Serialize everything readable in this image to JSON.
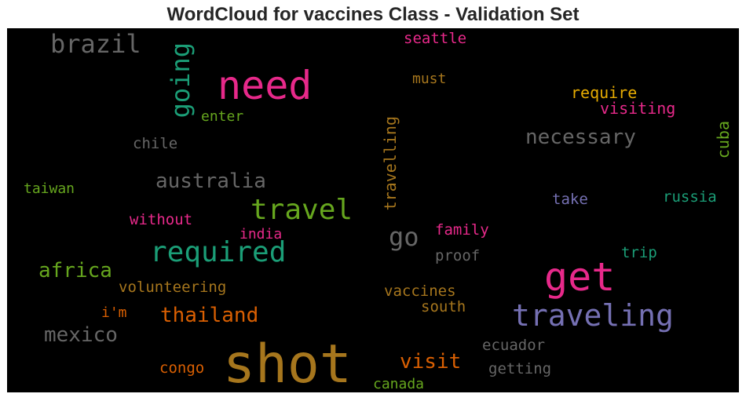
{
  "chart_data": {
    "type": "wordcloud",
    "title": "WordCloud for vaccines Class - Validation Set",
    "background": "#000000",
    "words": [
      {
        "text": "shot",
        "color": "#a6761d",
        "orientation": "horizontal"
      },
      {
        "text": "need",
        "color": "#e7298a",
        "orientation": "horizontal"
      },
      {
        "text": "get",
        "color": "#e7298a",
        "orientation": "horizontal"
      },
      {
        "text": "traveling",
        "color": "#7570b3",
        "orientation": "horizontal"
      },
      {
        "text": "required",
        "color": "#1b9e77",
        "orientation": "horizontal"
      },
      {
        "text": "travel",
        "color": "#66a61e",
        "orientation": "horizontal"
      },
      {
        "text": "brazil",
        "color": "#666666",
        "orientation": "horizontal"
      },
      {
        "text": "going",
        "color": "#1b9e77",
        "orientation": "vertical"
      },
      {
        "text": "go",
        "color": "#666666",
        "orientation": "horizontal"
      },
      {
        "text": "necessary",
        "color": "#666666",
        "orientation": "horizontal"
      },
      {
        "text": "australia",
        "color": "#666666",
        "orientation": "horizontal"
      },
      {
        "text": "africa",
        "color": "#66a61e",
        "orientation": "horizontal"
      },
      {
        "text": "mexico",
        "color": "#666666",
        "orientation": "horizontal"
      },
      {
        "text": "thailand",
        "color": "#d95f02",
        "orientation": "horizontal"
      },
      {
        "text": "visit",
        "color": "#d95f02",
        "orientation": "horizontal"
      },
      {
        "text": "travelling",
        "color": "#a6761d",
        "orientation": "vertical"
      },
      {
        "text": "seattle",
        "color": "#e7298a",
        "orientation": "horizontal"
      },
      {
        "text": "must",
        "color": "#a6761d",
        "orientation": "horizontal"
      },
      {
        "text": "require",
        "color": "#e6ab02",
        "orientation": "horizontal"
      },
      {
        "text": "visiting",
        "color": "#e7298a",
        "orientation": "horizontal"
      },
      {
        "text": "enter",
        "color": "#66a61e",
        "orientation": "horizontal"
      },
      {
        "text": "chile",
        "color": "#666666",
        "orientation": "horizontal"
      },
      {
        "text": "cuba",
        "color": "#66a61e",
        "orientation": "vertical"
      },
      {
        "text": "taiwan",
        "color": "#66a61e",
        "orientation": "horizontal"
      },
      {
        "text": "take",
        "color": "#7570b3",
        "orientation": "horizontal"
      },
      {
        "text": "russia",
        "color": "#1b9e77",
        "orientation": "horizontal"
      },
      {
        "text": "without",
        "color": "#e7298a",
        "orientation": "horizontal"
      },
      {
        "text": "india",
        "color": "#e7298a",
        "orientation": "horizontal"
      },
      {
        "text": "family",
        "color": "#e7298a",
        "orientation": "horizontal"
      },
      {
        "text": "proof",
        "color": "#666666",
        "orientation": "horizontal"
      },
      {
        "text": "trip",
        "color": "#1b9e77",
        "orientation": "horizontal"
      },
      {
        "text": "volunteering",
        "color": "#a6761d",
        "orientation": "horizontal"
      },
      {
        "text": "vaccines",
        "color": "#a6761d",
        "orientation": "horizontal"
      },
      {
        "text": "i'm",
        "color": "#d95f02",
        "orientation": "horizontal"
      },
      {
        "text": "south",
        "color": "#a6761d",
        "orientation": "horizontal"
      },
      {
        "text": "ecuador",
        "color": "#666666",
        "orientation": "horizontal"
      },
      {
        "text": "congo",
        "color": "#d95f02",
        "orientation": "horizontal"
      },
      {
        "text": "getting",
        "color": "#666666",
        "orientation": "horizontal"
      },
      {
        "text": "canada",
        "color": "#66a61e",
        "orientation": "horizontal"
      }
    ]
  }
}
